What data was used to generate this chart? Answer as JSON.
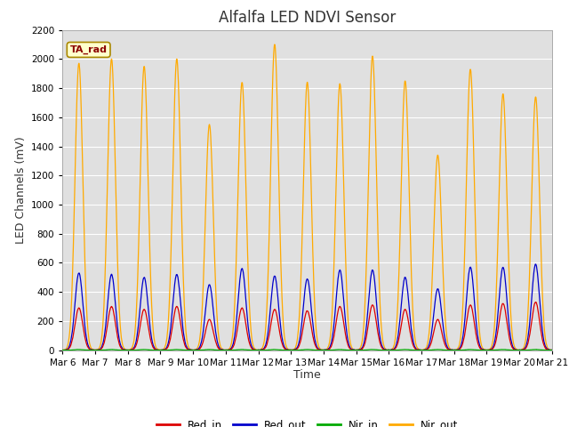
{
  "title": "Alfalfa LED NDVI Sensor",
  "ylabel": "LED Channels (mV)",
  "xlabel": "Time",
  "fig_bg_color": "#ffffff",
  "plot_bg_color": "#e0e0e0",
  "legend_label": "TA_rad",
  "legend_items": [
    "Red_in",
    "Red_out",
    "Nir_in",
    "Nir_out"
  ],
  "legend_colors": [
    "#dd0000",
    "#0000cc",
    "#00aa00",
    "#ffaa00"
  ],
  "ylim": [
    0,
    2200
  ],
  "x_tick_labels": [
    "Mar 6",
    "Mar 7",
    "Mar 8",
    "Mar 9",
    "Mar 10",
    "Mar 11",
    "Mar 12",
    "Mar 13",
    "Mar 14",
    "Mar 15",
    "Mar 16",
    "Mar 17",
    "Mar 18",
    "Mar 19",
    "Mar 20",
    "Mar 21"
  ],
  "nir_out_peaks": [
    1970,
    2000,
    1950,
    2000,
    1550,
    1840,
    2100,
    1840,
    1830,
    2020,
    1850,
    1340,
    1930,
    1760,
    1740
  ],
  "red_out_peaks": [
    530,
    520,
    500,
    520,
    450,
    560,
    510,
    490,
    550,
    550,
    500,
    420,
    570,
    570,
    590
  ],
  "red_in_peaks": [
    290,
    300,
    280,
    300,
    210,
    290,
    280,
    270,
    300,
    310,
    280,
    210,
    310,
    320,
    330
  ],
  "nir_in_peaks": [
    4,
    4,
    4,
    4,
    4,
    4,
    4,
    4,
    4,
    4,
    4,
    4,
    4,
    4,
    4
  ],
  "title_fontsize": 12,
  "axis_label_fontsize": 9,
  "tick_fontsize": 7.5,
  "legend_fontsize": 8.5,
  "annot_fontsize": 8
}
